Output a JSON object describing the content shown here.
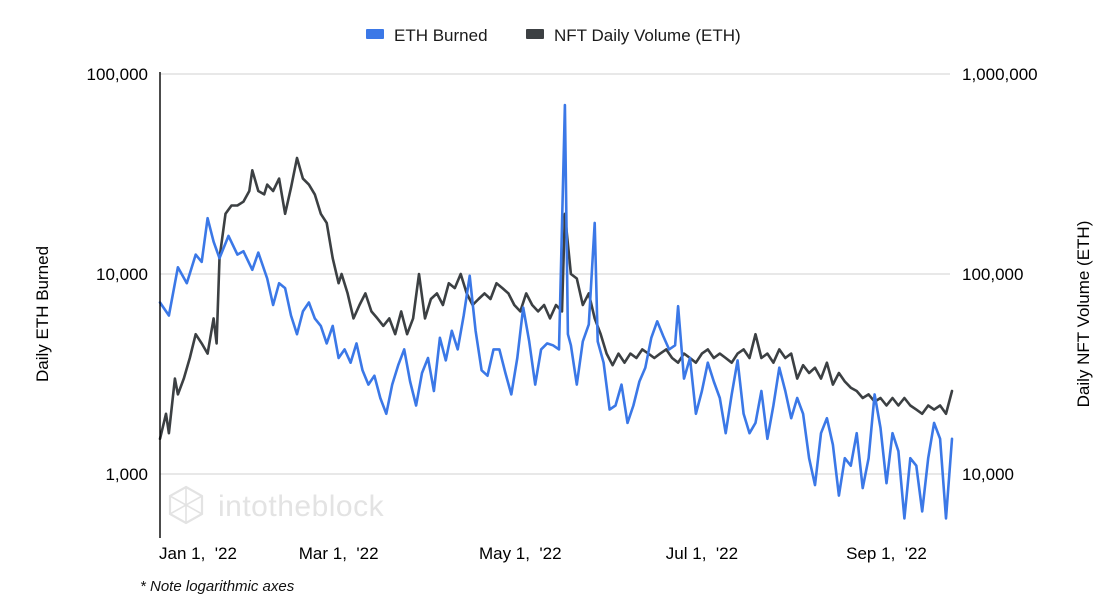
{
  "chart_data": {
    "type": "line",
    "title": "",
    "legend": {
      "position": "top",
      "entries": [
        "ETH Burned",
        "NFT Daily Volume (ETH)"
      ]
    },
    "ylabel_left": "Daily ETH Burned",
    "ylabel_right": "Daily NFT Volume (ETH)",
    "scale": "log",
    "ylim_left": [
      500,
      100000
    ],
    "ylim_right": [
      5000,
      1000000
    ],
    "y_ticks_left": [
      {
        "value": 1000,
        "label": "1,000"
      },
      {
        "value": 10000,
        "label": "10,000"
      },
      {
        "value": 100000,
        "label": "100,000"
      }
    ],
    "y_ticks_right": [
      {
        "value": 10000,
        "label": "10,000"
      },
      {
        "value": 100000,
        "label": "100,000"
      },
      {
        "value": 1000000,
        "label": "1,000,000"
      }
    ],
    "x_range_days": [
      0,
      266
    ],
    "x_ticks": [
      {
        "day": 0,
        "label": "Jan 1,  '22"
      },
      {
        "day": 59,
        "label": "Mar 1,  '22"
      },
      {
        "day": 120,
        "label": "May 1,  '22"
      },
      {
        "day": 181,
        "label": "Jul 1,  '22"
      },
      {
        "day": 243,
        "label": "Sep 1,  '22"
      }
    ],
    "series": [
      {
        "name": "ETH Burned",
        "axis": "left",
        "color": "#3b78e7",
        "points": [
          [
            0,
            7200
          ],
          [
            3,
            6200
          ],
          [
            6,
            10800
          ],
          [
            9,
            9000
          ],
          [
            12,
            12500
          ],
          [
            14,
            11500
          ],
          [
            16,
            19000
          ],
          [
            18,
            14500
          ],
          [
            20,
            12000
          ],
          [
            23,
            15500
          ],
          [
            26,
            12500
          ],
          [
            28,
            13000
          ],
          [
            31,
            10500
          ],
          [
            33,
            12800
          ],
          [
            36,
            9500
          ],
          [
            38,
            7000
          ],
          [
            40,
            9000
          ],
          [
            42,
            8500
          ],
          [
            44,
            6200
          ],
          [
            46,
            5000
          ],
          [
            48,
            6500
          ],
          [
            50,
            7200
          ],
          [
            52,
            6000
          ],
          [
            54,
            5500
          ],
          [
            56,
            4500
          ],
          [
            58,
            5500
          ],
          [
            60,
            3800
          ],
          [
            62,
            4200
          ],
          [
            64,
            3600
          ],
          [
            66,
            4500
          ],
          [
            68,
            3300
          ],
          [
            70,
            2800
          ],
          [
            72,
            3100
          ],
          [
            74,
            2400
          ],
          [
            76,
            2000
          ],
          [
            78,
            2800
          ],
          [
            80,
            3500
          ],
          [
            82,
            4200
          ],
          [
            84,
            2900
          ],
          [
            86,
            2200
          ],
          [
            88,
            3200
          ],
          [
            90,
            3800
          ],
          [
            92,
            2600
          ],
          [
            94,
            4800
          ],
          [
            96,
            3700
          ],
          [
            98,
            5200
          ],
          [
            100,
            4200
          ],
          [
            102,
            6200
          ],
          [
            104,
            9800
          ],
          [
            106,
            5200
          ],
          [
            108,
            3300
          ],
          [
            110,
            3100
          ],
          [
            112,
            4200
          ],
          [
            114,
            4200
          ],
          [
            116,
            3200
          ],
          [
            118,
            2500
          ],
          [
            120,
            3800
          ],
          [
            122,
            6800
          ],
          [
            124,
            4600
          ],
          [
            126,
            2800
          ],
          [
            128,
            4200
          ],
          [
            130,
            4500
          ],
          [
            132,
            4400
          ],
          [
            134,
            4200
          ],
          [
            136,
            70000
          ],
          [
            137,
            5000
          ],
          [
            138,
            4400
          ],
          [
            140,
            2800
          ],
          [
            142,
            4600
          ],
          [
            144,
            5600
          ],
          [
            146,
            18000
          ],
          [
            147,
            4600
          ],
          [
            149,
            3600
          ],
          [
            151,
            2100
          ],
          [
            153,
            2200
          ],
          [
            155,
            2800
          ],
          [
            157,
            1800
          ],
          [
            159,
            2200
          ],
          [
            161,
            2900
          ],
          [
            163,
            3400
          ],
          [
            165,
            4800
          ],
          [
            167,
            5800
          ],
          [
            169,
            4900
          ],
          [
            171,
            4200
          ],
          [
            173,
            4400
          ],
          [
            174,
            6900
          ],
          [
            176,
            3000
          ],
          [
            178,
            3800
          ],
          [
            180,
            2000
          ],
          [
            182,
            2600
          ],
          [
            184,
            3600
          ],
          [
            186,
            2900
          ],
          [
            188,
            2400
          ],
          [
            190,
            1600
          ],
          [
            192,
            2500
          ],
          [
            194,
            3700
          ],
          [
            196,
            2000
          ],
          [
            198,
            1600
          ],
          [
            200,
            1800
          ],
          [
            202,
            2600
          ],
          [
            204,
            1500
          ],
          [
            206,
            2200
          ],
          [
            208,
            3400
          ],
          [
            210,
            2600
          ],
          [
            212,
            1900
          ],
          [
            214,
            2400
          ],
          [
            216,
            2000
          ],
          [
            218,
            1200
          ],
          [
            220,
            880
          ],
          [
            222,
            1600
          ],
          [
            224,
            1900
          ],
          [
            226,
            1400
          ],
          [
            228,
            780
          ],
          [
            230,
            1200
          ],
          [
            232,
            1100
          ],
          [
            234,
            1600
          ],
          [
            236,
            850
          ],
          [
            238,
            1200
          ],
          [
            240,
            2500
          ],
          [
            242,
            1700
          ],
          [
            244,
            900
          ],
          [
            246,
            1600
          ],
          [
            248,
            1300
          ],
          [
            250,
            600
          ],
          [
            252,
            1200
          ],
          [
            254,
            1100
          ],
          [
            256,
            650
          ],
          [
            258,
            1200
          ],
          [
            260,
            1800
          ],
          [
            262,
            1500
          ],
          [
            264,
            600
          ],
          [
            266,
            1500
          ]
        ]
      },
      {
        "name": "NFT Daily Volume (ETH)",
        "axis": "right",
        "color": "#3c4043",
        "points": [
          [
            0,
            15000
          ],
          [
            2,
            20000
          ],
          [
            3,
            16000
          ],
          [
            5,
            30000
          ],
          [
            6,
            25000
          ],
          [
            8,
            30000
          ],
          [
            10,
            38000
          ],
          [
            12,
            50000
          ],
          [
            14,
            45000
          ],
          [
            16,
            40000
          ],
          [
            18,
            60000
          ],
          [
            19,
            45000
          ],
          [
            20,
            120000
          ],
          [
            22,
            200000
          ],
          [
            24,
            220000
          ],
          [
            26,
            220000
          ],
          [
            28,
            230000
          ],
          [
            30,
            260000
          ],
          [
            31,
            330000
          ],
          [
            33,
            260000
          ],
          [
            35,
            250000
          ],
          [
            36,
            280000
          ],
          [
            38,
            260000
          ],
          [
            40,
            300000
          ],
          [
            42,
            200000
          ],
          [
            44,
            270000
          ],
          [
            46,
            380000
          ],
          [
            48,
            300000
          ],
          [
            50,
            280000
          ],
          [
            52,
            250000
          ],
          [
            54,
            200000
          ],
          [
            56,
            180000
          ],
          [
            58,
            120000
          ],
          [
            60,
            90000
          ],
          [
            61,
            100000
          ],
          [
            63,
            80000
          ],
          [
            65,
            60000
          ],
          [
            67,
            70000
          ],
          [
            69,
            80000
          ],
          [
            71,
            65000
          ],
          [
            73,
            60000
          ],
          [
            75,
            55000
          ],
          [
            77,
            60000
          ],
          [
            79,
            50000
          ],
          [
            81,
            65000
          ],
          [
            83,
            50000
          ],
          [
            85,
            60000
          ],
          [
            87,
            100000
          ],
          [
            89,
            60000
          ],
          [
            91,
            75000
          ],
          [
            93,
            80000
          ],
          [
            95,
            70000
          ],
          [
            97,
            90000
          ],
          [
            99,
            85000
          ],
          [
            101,
            100000
          ],
          [
            103,
            80000
          ],
          [
            105,
            70000
          ],
          [
            107,
            75000
          ],
          [
            109,
            80000
          ],
          [
            111,
            75000
          ],
          [
            113,
            90000
          ],
          [
            115,
            85000
          ],
          [
            117,
            80000
          ],
          [
            119,
            70000
          ],
          [
            121,
            65000
          ],
          [
            123,
            80000
          ],
          [
            125,
            70000
          ],
          [
            127,
            65000
          ],
          [
            129,
            70000
          ],
          [
            131,
            60000
          ],
          [
            133,
            70000
          ],
          [
            135,
            65000
          ],
          [
            136,
            200000
          ],
          [
            138,
            100000
          ],
          [
            140,
            95000
          ],
          [
            142,
            70000
          ],
          [
            144,
            80000
          ],
          [
            146,
            60000
          ],
          [
            148,
            50000
          ],
          [
            150,
            40000
          ],
          [
            152,
            35000
          ],
          [
            154,
            40000
          ],
          [
            156,
            36000
          ],
          [
            158,
            40000
          ],
          [
            160,
            38000
          ],
          [
            162,
            42000
          ],
          [
            164,
            40000
          ],
          [
            166,
            38000
          ],
          [
            168,
            40000
          ],
          [
            170,
            42000
          ],
          [
            172,
            38000
          ],
          [
            174,
            36000
          ],
          [
            176,
            40000
          ],
          [
            178,
            38000
          ],
          [
            180,
            36000
          ],
          [
            182,
            40000
          ],
          [
            184,
            42000
          ],
          [
            186,
            38000
          ],
          [
            188,
            40000
          ],
          [
            190,
            38000
          ],
          [
            192,
            36000
          ],
          [
            194,
            40000
          ],
          [
            196,
            42000
          ],
          [
            198,
            38000
          ],
          [
            200,
            50000
          ],
          [
            202,
            38000
          ],
          [
            204,
            40000
          ],
          [
            206,
            36000
          ],
          [
            208,
            42000
          ],
          [
            210,
            38000
          ],
          [
            212,
            40000
          ],
          [
            214,
            30000
          ],
          [
            216,
            35000
          ],
          [
            218,
            32000
          ],
          [
            220,
            34000
          ],
          [
            222,
            30000
          ],
          [
            224,
            36000
          ],
          [
            226,
            28000
          ],
          [
            228,
            32000
          ],
          [
            230,
            29000
          ],
          [
            232,
            27000
          ],
          [
            234,
            26000
          ],
          [
            236,
            24000
          ],
          [
            238,
            25000
          ],
          [
            240,
            23000
          ],
          [
            242,
            24000
          ],
          [
            244,
            22000
          ],
          [
            246,
            24000
          ],
          [
            248,
            22000
          ],
          [
            250,
            24000
          ],
          [
            252,
            22000
          ],
          [
            254,
            21000
          ],
          [
            256,
            20000
          ],
          [
            258,
            22000
          ],
          [
            260,
            21000
          ],
          [
            262,
            22000
          ],
          [
            264,
            20000
          ],
          [
            266,
            26000
          ]
        ]
      }
    ],
    "annotations": [
      {
        "text": "intotheblock",
        "kind": "watermark"
      }
    ]
  },
  "footnote": "* Note logarithmic axes"
}
